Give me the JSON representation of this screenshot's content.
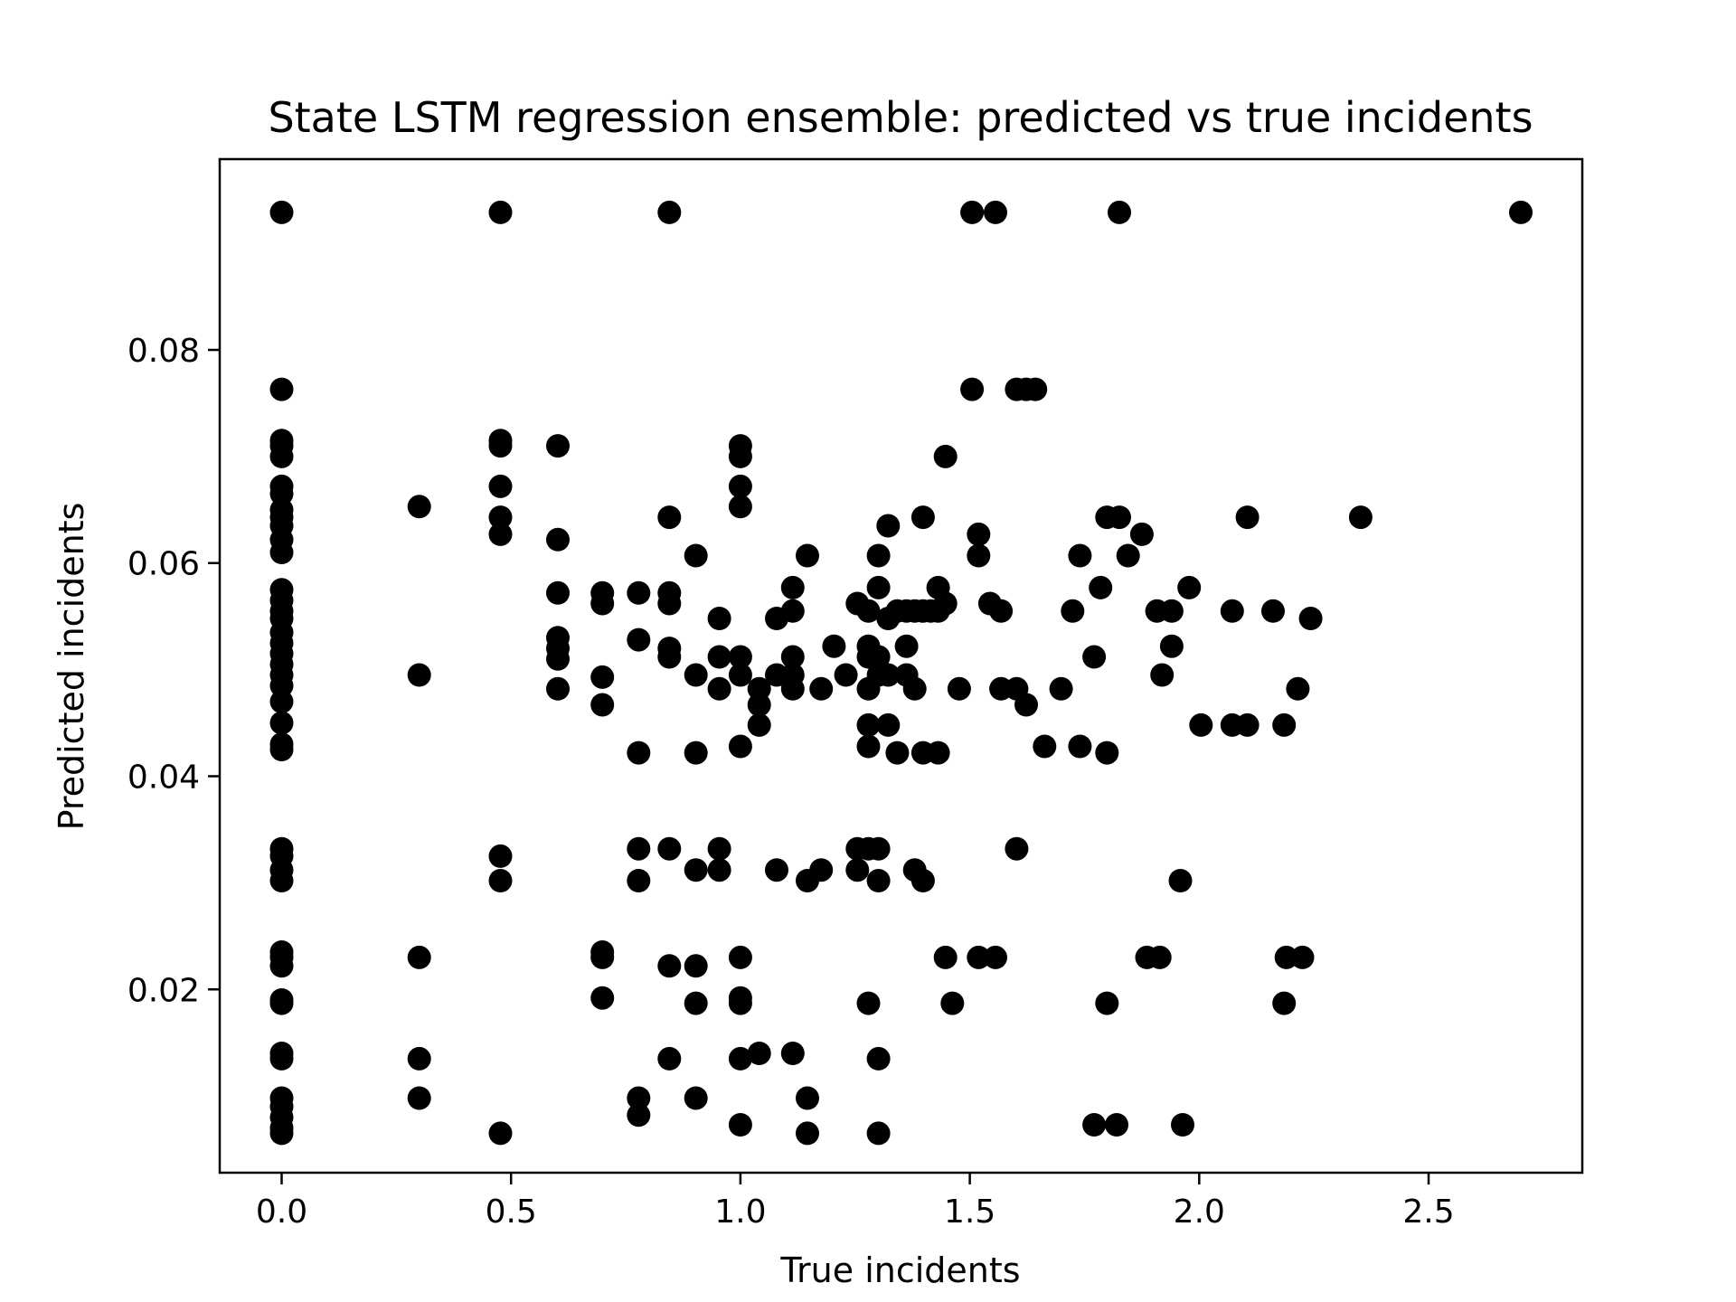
{
  "chart_data": {
    "type": "scatter",
    "title": "State LSTM regression ensemble: predicted vs true incidents",
    "xlabel": "True incidents",
    "ylabel": "Predicted incidents",
    "xlim": [
      -0.135,
      2.835
    ],
    "ylim": [
      0.0028,
      0.0979
    ],
    "xticks": [
      {
        "value": 0.0,
        "label": "0.0"
      },
      {
        "value": 0.5,
        "label": "0.5"
      },
      {
        "value": 1.0,
        "label": "1.0"
      },
      {
        "value": 1.5,
        "label": "1.5"
      },
      {
        "value": 2.0,
        "label": "2.0"
      },
      {
        "value": 2.5,
        "label": "2.5"
      }
    ],
    "yticks": [
      {
        "value": 0.02,
        "label": "0.02"
      },
      {
        "value": 0.04,
        "label": "0.04"
      },
      {
        "value": 0.06,
        "label": "0.06"
      },
      {
        "value": 0.08,
        "label": "0.08"
      }
    ],
    "grid": false,
    "marker_color": "#000000",
    "series": [
      {
        "points": [
          [
            0.0,
            0.0929
          ],
          [
            0.0,
            0.0763
          ],
          [
            0.0,
            0.0715
          ],
          [
            0.0,
            0.071
          ],
          [
            0.0,
            0.07
          ],
          [
            0.0,
            0.0672
          ],
          [
            0.0,
            0.0665
          ],
          [
            0.0,
            0.065
          ],
          [
            0.0,
            0.0643
          ],
          [
            0.0,
            0.0635
          ],
          [
            0.0,
            0.0622
          ],
          [
            0.0,
            0.061
          ],
          [
            0.0,
            0.0575
          ],
          [
            0.0,
            0.0565
          ],
          [
            0.0,
            0.0555
          ],
          [
            0.0,
            0.0548
          ],
          [
            0.0,
            0.0535
          ],
          [
            0.0,
            0.0525
          ],
          [
            0.0,
            0.0515
          ],
          [
            0.0,
            0.0505
          ],
          [
            0.0,
            0.0495
          ],
          [
            0.0,
            0.0485
          ],
          [
            0.0,
            0.047
          ],
          [
            0.0,
            0.045
          ],
          [
            0.0,
            0.043
          ],
          [
            0.0,
            0.0425
          ],
          [
            0.0,
            0.0332
          ],
          [
            0.0,
            0.0325
          ],
          [
            0.0,
            0.0312
          ],
          [
            0.0,
            0.0302
          ],
          [
            0.0,
            0.0235
          ],
          [
            0.0,
            0.023
          ],
          [
            0.0,
            0.0222
          ],
          [
            0.0,
            0.019
          ],
          [
            0.0,
            0.0187
          ],
          [
            0.0,
            0.014
          ],
          [
            0.0,
            0.0135
          ],
          [
            0.0,
            0.0098
          ],
          [
            0.0,
            0.009
          ],
          [
            0.0,
            0.008
          ],
          [
            0.0,
            0.007
          ],
          [
            0.0,
            0.0065
          ],
          [
            0.3,
            0.0653
          ],
          [
            0.3,
            0.0495
          ],
          [
            0.3,
            0.023
          ],
          [
            0.3,
            0.0135
          ],
          [
            0.3,
            0.0098
          ],
          [
            0.477,
            0.0929
          ],
          [
            0.477,
            0.0715
          ],
          [
            0.477,
            0.071
          ],
          [
            0.477,
            0.0672
          ],
          [
            0.477,
            0.0643
          ],
          [
            0.477,
            0.0627
          ],
          [
            0.477,
            0.0325
          ],
          [
            0.477,
            0.0302
          ],
          [
            0.477,
            0.0065
          ],
          [
            0.602,
            0.071
          ],
          [
            0.602,
            0.0622
          ],
          [
            0.602,
            0.0572
          ],
          [
            0.602,
            0.053
          ],
          [
            0.602,
            0.052
          ],
          [
            0.602,
            0.051
          ],
          [
            0.602,
            0.0482
          ],
          [
            0.699,
            0.0572
          ],
          [
            0.699,
            0.0562
          ],
          [
            0.699,
            0.0493
          ],
          [
            0.699,
            0.0467
          ],
          [
            0.699,
            0.0235
          ],
          [
            0.699,
            0.023
          ],
          [
            0.699,
            0.0192
          ],
          [
            0.778,
            0.0572
          ],
          [
            0.778,
            0.0528
          ],
          [
            0.778,
            0.0422
          ],
          [
            0.778,
            0.0332
          ],
          [
            0.778,
            0.0302
          ],
          [
            0.778,
            0.0098
          ],
          [
            0.778,
            0.0082
          ],
          [
            0.845,
            0.0929
          ],
          [
            0.845,
            0.0643
          ],
          [
            0.845,
            0.0572
          ],
          [
            0.845,
            0.0562
          ],
          [
            0.845,
            0.052
          ],
          [
            0.845,
            0.0512
          ],
          [
            0.845,
            0.0332
          ],
          [
            0.845,
            0.0222
          ],
          [
            0.845,
            0.0135
          ],
          [
            0.903,
            0.0607
          ],
          [
            0.903,
            0.0495
          ],
          [
            0.903,
            0.0422
          ],
          [
            0.903,
            0.0312
          ],
          [
            0.903,
            0.0222
          ],
          [
            0.903,
            0.0187
          ],
          [
            0.903,
            0.0098
          ],
          [
            0.954,
            0.0548
          ],
          [
            0.954,
            0.0512
          ],
          [
            0.954,
            0.0482
          ],
          [
            0.954,
            0.0332
          ],
          [
            0.954,
            0.0312
          ],
          [
            1.0,
            0.071
          ],
          [
            1.0,
            0.07
          ],
          [
            1.0,
            0.0672
          ],
          [
            1.0,
            0.0653
          ],
          [
            1.0,
            0.0512
          ],
          [
            1.0,
            0.0495
          ],
          [
            1.0,
            0.0428
          ],
          [
            1.0,
            0.023
          ],
          [
            1.0,
            0.0192
          ],
          [
            1.0,
            0.0187
          ],
          [
            1.0,
            0.0135
          ],
          [
            1.0,
            0.0073
          ],
          [
            1.041,
            0.0482
          ],
          [
            1.041,
            0.0467
          ],
          [
            1.041,
            0.0448
          ],
          [
            1.041,
            0.014
          ],
          [
            1.079,
            0.0548
          ],
          [
            1.079,
            0.0495
          ],
          [
            1.079,
            0.0312
          ],
          [
            1.114,
            0.0577
          ],
          [
            1.114,
            0.0555
          ],
          [
            1.114,
            0.0512
          ],
          [
            1.114,
            0.0495
          ],
          [
            1.114,
            0.0482
          ],
          [
            1.114,
            0.014
          ],
          [
            1.146,
            0.0607
          ],
          [
            1.146,
            0.0302
          ],
          [
            1.146,
            0.0098
          ],
          [
            1.146,
            0.0065
          ],
          [
            1.176,
            0.0482
          ],
          [
            1.176,
            0.0312
          ],
          [
            1.204,
            0.0522
          ],
          [
            1.23,
            0.0495
          ],
          [
            1.255,
            0.0562
          ],
          [
            1.255,
            0.0332
          ],
          [
            1.255,
            0.0312
          ],
          [
            1.279,
            0.0555
          ],
          [
            1.279,
            0.0522
          ],
          [
            1.279,
            0.0512
          ],
          [
            1.279,
            0.0482
          ],
          [
            1.279,
            0.0448
          ],
          [
            1.279,
            0.0428
          ],
          [
            1.279,
            0.0332
          ],
          [
            1.279,
            0.0187
          ],
          [
            1.301,
            0.0607
          ],
          [
            1.301,
            0.0577
          ],
          [
            1.301,
            0.0512
          ],
          [
            1.301,
            0.0495
          ],
          [
            1.301,
            0.0332
          ],
          [
            1.301,
            0.0302
          ],
          [
            1.301,
            0.0135
          ],
          [
            1.301,
            0.0065
          ],
          [
            1.322,
            0.0635
          ],
          [
            1.322,
            0.0548
          ],
          [
            1.322,
            0.0495
          ],
          [
            1.322,
            0.0448
          ],
          [
            1.342,
            0.0555
          ],
          [
            1.342,
            0.0422
          ],
          [
            1.362,
            0.0555
          ],
          [
            1.362,
            0.0522
          ],
          [
            1.362,
            0.0495
          ],
          [
            1.38,
            0.0555
          ],
          [
            1.38,
            0.0482
          ],
          [
            1.38,
            0.0312
          ],
          [
            1.398,
            0.0643
          ],
          [
            1.398,
            0.0555
          ],
          [
            1.398,
            0.0422
          ],
          [
            1.398,
            0.0302
          ],
          [
            1.415,
            0.0555
          ],
          [
            1.431,
            0.0577
          ],
          [
            1.431,
            0.0555
          ],
          [
            1.431,
            0.0422
          ],
          [
            1.447,
            0.07
          ],
          [
            1.447,
            0.0562
          ],
          [
            1.447,
            0.023
          ],
          [
            1.462,
            0.0187
          ],
          [
            1.477,
            0.0482
          ],
          [
            1.505,
            0.0929
          ],
          [
            1.505,
            0.0763
          ],
          [
            1.519,
            0.0627
          ],
          [
            1.519,
            0.0607
          ],
          [
            1.519,
            0.023
          ],
          [
            1.544,
            0.0562
          ],
          [
            1.556,
            0.0929
          ],
          [
            1.556,
            0.023
          ],
          [
            1.568,
            0.0555
          ],
          [
            1.568,
            0.0482
          ],
          [
            1.602,
            0.0763
          ],
          [
            1.602,
            0.0482
          ],
          [
            1.602,
            0.0332
          ],
          [
            1.623,
            0.0763
          ],
          [
            1.623,
            0.0467
          ],
          [
            1.643,
            0.0763
          ],
          [
            1.663,
            0.0428
          ],
          [
            1.699,
            0.0482
          ],
          [
            1.724,
            0.0555
          ],
          [
            1.74,
            0.0607
          ],
          [
            1.74,
            0.0428
          ],
          [
            1.771,
            0.0512
          ],
          [
            1.771,
            0.0073
          ],
          [
            1.785,
            0.0577
          ],
          [
            1.799,
            0.0643
          ],
          [
            1.799,
            0.0422
          ],
          [
            1.799,
            0.0187
          ],
          [
            1.82,
            0.0073
          ],
          [
            1.826,
            0.0929
          ],
          [
            1.826,
            0.0643
          ],
          [
            1.845,
            0.0607
          ],
          [
            1.875,
            0.0627
          ],
          [
            1.886,
            0.023
          ],
          [
            1.908,
            0.0555
          ],
          [
            1.914,
            0.023
          ],
          [
            1.919,
            0.0495
          ],
          [
            1.94,
            0.0555
          ],
          [
            1.94,
            0.0522
          ],
          [
            1.959,
            0.0302
          ],
          [
            1.964,
            0.0073
          ],
          [
            1.978,
            0.0577
          ],
          [
            2.004,
            0.0448
          ],
          [
            2.072,
            0.0555
          ],
          [
            2.072,
            0.0448
          ],
          [
            2.105,
            0.0643
          ],
          [
            2.105,
            0.0448
          ],
          [
            2.161,
            0.0555
          ],
          [
            2.185,
            0.0448
          ],
          [
            2.185,
            0.0187
          ],
          [
            2.19,
            0.023
          ],
          [
            2.215,
            0.0482
          ],
          [
            2.225,
            0.023
          ],
          [
            2.243,
            0.0548
          ],
          [
            2.352,
            0.0643
          ],
          [
            2.701,
            0.0929
          ]
        ]
      }
    ]
  }
}
